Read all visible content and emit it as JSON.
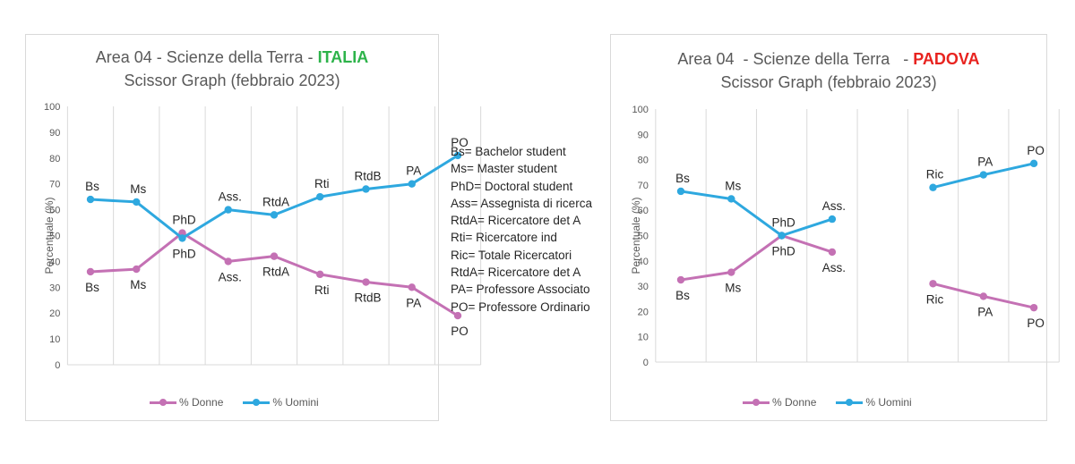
{
  "colors": {
    "donne": "#c471b4",
    "uomini": "#2ea8df",
    "grid": "#d9d9d9",
    "italia": "#2db34a",
    "padova": "#e8231f"
  },
  "glossary": [
    "Bs= Bachelor student",
    "Ms= Master student",
    "PhD= Doctoral student",
    "Ass= Assegnista di ricerca",
    "RtdA= Ricercatore det A",
    "Rti= Ricercatore ind",
    "Ric= Totale Ricercatori",
    "RtdA= Ricercatore det A",
    "PA= Professore Associato",
    "PO= Professore Ordinario"
  ],
  "chart_data": [
    {
      "type": "line",
      "title_line1": "Area 04 - Scienze della Terra - ",
      "title_highlight": "ITALIA",
      "title_line2": "Scissor Graph (febbraio 2023)",
      "xlabel": "",
      "ylabel": "Percentuale (%)",
      "ylim": [
        0,
        100
      ],
      "yticks": [
        0,
        10,
        20,
        30,
        40,
        50,
        60,
        70,
        80,
        90,
        100
      ],
      "grid": "vertical",
      "legend": "bottom",
      "categories": [
        "Bs",
        "Ms",
        "PhD",
        "Ass.",
        "RtdA",
        "Rti",
        "RtdB",
        "PA",
        "PO"
      ],
      "series": [
        {
          "name": "% Donne",
          "values": [
            36,
            37,
            51,
            40,
            42,
            35,
            32,
            30,
            19
          ]
        },
        {
          "name": "% Uomini",
          "values": [
            64,
            63,
            49,
            60,
            58,
            65,
            68,
            70,
            81
          ]
        }
      ]
    },
    {
      "type": "line",
      "title_line1": "Area 04  - Scienze della Terra   - ",
      "title_highlight": "PADOVA",
      "title_line2": "Scissor Graph (febbraio 2023)",
      "xlabel": "",
      "ylabel": "Percentuale (%)",
      "ylim": [
        0,
        100
      ],
      "yticks": [
        0,
        10,
        20,
        30,
        40,
        50,
        60,
        70,
        80,
        90,
        100
      ],
      "grid": "vertical",
      "legend": "bottom",
      "categories": [
        "Bs",
        "Ms",
        "PhD",
        "Ass.",
        "",
        "Ric",
        "PA",
        "PO"
      ],
      "series": [
        {
          "name": "% Donne",
          "values": [
            32.5,
            35.5,
            50,
            43.5,
            null,
            31,
            26,
            21.5
          ]
        },
        {
          "name": "% Uomini",
          "values": [
            67.5,
            64.5,
            50,
            56.5,
            null,
            69,
            74,
            78.5
          ]
        }
      ]
    }
  ]
}
